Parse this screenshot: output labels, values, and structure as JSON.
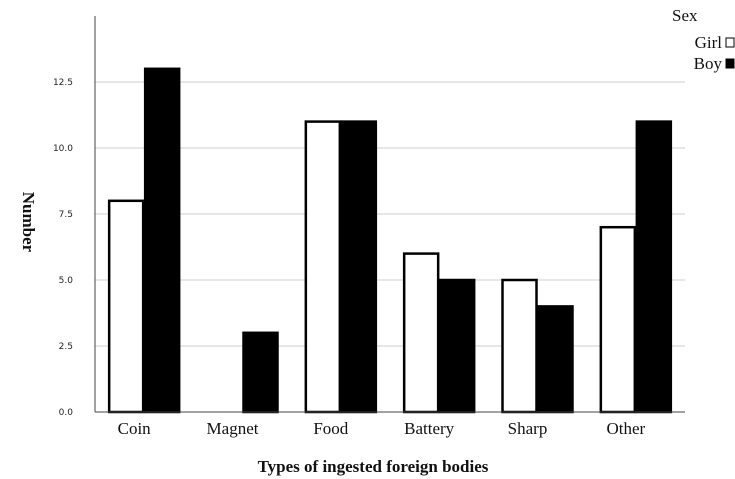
{
  "chart_data": {
    "type": "bar",
    "categories": [
      "Coin",
      "Magnet",
      "Food",
      "Battery",
      "Sharp",
      "Other"
    ],
    "series": [
      {
        "name": "Girl",
        "values": [
          8,
          0,
          11,
          6,
          5,
          7
        ],
        "color": "#ffffff"
      },
      {
        "name": "Boy",
        "values": [
          13,
          3,
          11,
          5,
          4,
          11
        ],
        "color": "#000000"
      }
    ],
    "title": "",
    "xlabel": "Types of ingested foreign bodies",
    "ylabel": "Number",
    "ylim": [
      0,
      15
    ],
    "yticks": [
      "0.0",
      "2.5",
      "5.0",
      "7.5",
      "10.0",
      "12.5"
    ],
    "grid": true,
    "legend": {
      "title": "Sex",
      "placement": "top-right"
    }
  }
}
